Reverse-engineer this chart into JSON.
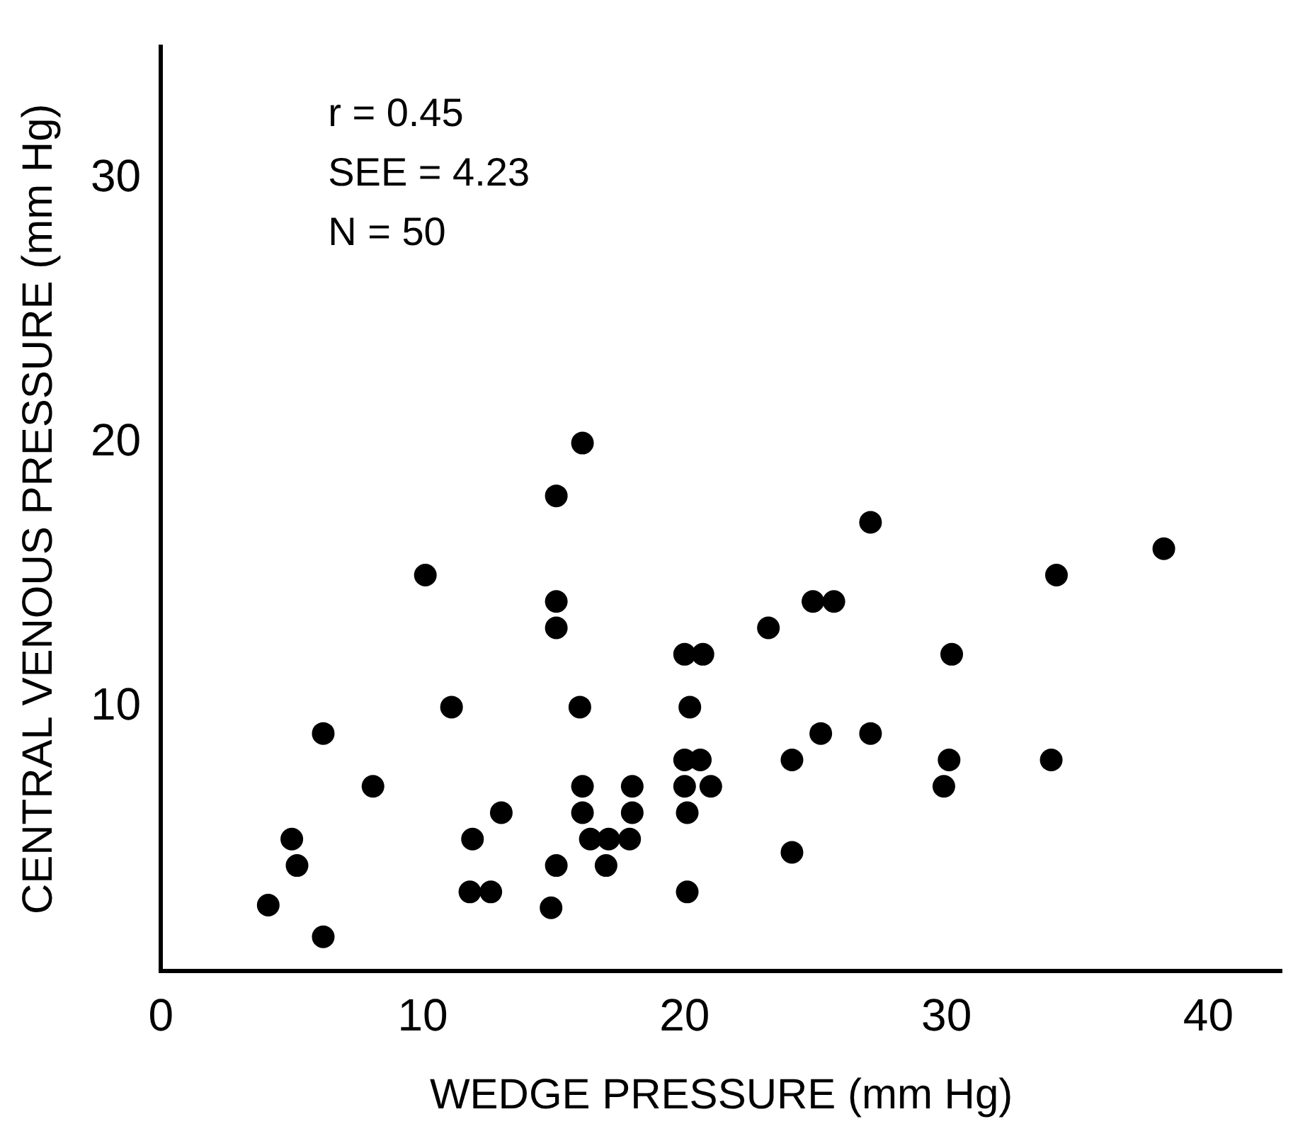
{
  "chart_data": {
    "type": "scatter",
    "xlabel": "WEDGE PRESSURE (mm Hg)",
    "ylabel": "CENTRAL VENOUS PRESSURE (mm Hg)",
    "annotations": [
      "r = 0.45",
      "SEE = 4.23",
      "N = 50"
    ],
    "xlim": [
      0,
      42.8
    ],
    "ylim": [
      0,
      35
    ],
    "xticks": [
      0,
      10,
      20,
      30,
      40
    ],
    "yticks": [
      10,
      20,
      30
    ],
    "grid": false,
    "legend": false,
    "marker": "circle",
    "series": [
      {
        "color": "#000000",
        "x": [
          4.1,
          6.2,
          5.0,
          5.2,
          6.2,
          8.1,
          10.1,
          11.1,
          11.9,
          13.0,
          11.8,
          12.6,
          15.1,
          16.1,
          15.1,
          15.1,
          16.0,
          16.1,
          16.1,
          15.1,
          14.9,
          16.4,
          17.1,
          17.9,
          17.0,
          18.0,
          18.0,
          20.0,
          20.7,
          20.2,
          20.0,
          20.6,
          20.0,
          21.0,
          20.1,
          20.1,
          23.2,
          24.9,
          25.7,
          27.1,
          24.1,
          25.2,
          27.1,
          24.1,
          30.2,
          30.1,
          29.9,
          34.2,
          34.0,
          38.3
        ],
        "values": [
          2.5,
          1.3,
          5,
          4,
          9,
          7,
          15,
          10,
          5,
          6,
          3,
          3,
          18,
          20,
          14,
          13,
          10,
          7,
          6,
          4,
          2.4,
          5,
          5,
          5,
          4,
          7,
          6,
          12,
          12,
          10,
          8,
          8,
          7,
          7,
          6,
          3,
          13,
          14,
          14,
          17,
          8,
          9,
          9,
          4.5,
          12,
          8,
          7,
          15,
          8,
          16
        ]
      }
    ]
  }
}
